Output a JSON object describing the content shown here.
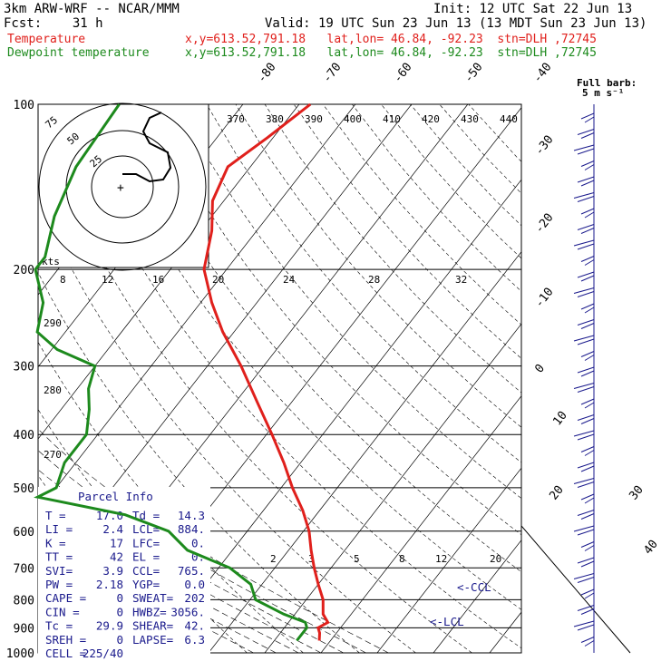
{
  "header": {
    "model": "3km ARW-WRF -- NCAR/MMM",
    "init": "Init: 12 UTC Sat 22 Jun 13",
    "fcst": "Fcst:    31 h",
    "valid": "Valid: 19 UTC Sun 23 Jun 13 (13 MDT Sun 23 Jun 13)",
    "temp_label": "Temperature",
    "temp_loc": "x,y=613.52,791.18   lat,lon= 46.84, -92.23  stn=DLH ,72745",
    "dew_label": "Dewpoint temperature",
    "dew_loc": "x,y=613.52,791.18   lat,lon= 46.84, -92.23  stn=DLH ,72745"
  },
  "colors": {
    "temperature": "#e0201c",
    "dewpoint": "#1d8a1d",
    "parcel_text": "#1a1a8c"
  },
  "chart_data": {
    "type": "line",
    "pressure_levels": [
      100,
      200,
      300,
      400,
      500,
      600,
      700,
      800,
      900,
      1000
    ],
    "pressure_ticks": [
      "100",
      "200",
      "300",
      "400",
      "500",
      "600",
      "700",
      "800",
      "900",
      "1000"
    ],
    "isotherm_labels": [
      "-80",
      "-70",
      "-60",
      "-50",
      "-40",
      "-30",
      "-20",
      "-10",
      "0",
      "10",
      "20",
      "30",
      "40"
    ],
    "theta_labels": [
      "370",
      "380",
      "390",
      "400",
      "410",
      "420",
      "430",
      "440"
    ],
    "mixing_ratio_labels": [
      "2",
      "3",
      "5",
      "8",
      "12",
      "20"
    ],
    "hodo_speed_labels": [
      "8",
      "12",
      "16",
      "20",
      "24",
      "28",
      "32"
    ],
    "theta_side_labels": [
      "290",
      "280",
      "270"
    ],
    "hodograph": {
      "units_label": "kts",
      "ring_labels": [
        "25",
        "50",
        "75"
      ]
    },
    "wind_barb_label": "Full barb:",
    "wind_barb_label2": "5 m s⁻¹",
    "annotations": [
      "<-CCL",
      "<-LCL"
    ],
    "series": [
      {
        "name": "Temperature",
        "color": "#e0201c",
        "points": [
          [
            100,
            -58
          ],
          [
            115,
            -61
          ],
          [
            130,
            -64
          ],
          [
            150,
            -62
          ],
          [
            170,
            -58
          ],
          [
            200,
            -54
          ],
          [
            230,
            -48
          ],
          [
            260,
            -42
          ],
          [
            300,
            -34
          ],
          [
            350,
            -26
          ],
          [
            400,
            -19
          ],
          [
            450,
            -13
          ],
          [
            500,
            -8
          ],
          [
            550,
            -3
          ],
          [
            600,
            1
          ],
          [
            650,
            4
          ],
          [
            700,
            7
          ],
          [
            750,
            10
          ],
          [
            800,
            13
          ],
          [
            850,
            15
          ],
          [
            880,
            17
          ],
          [
            900,
            16
          ],
          [
            920,
            17
          ],
          [
            950,
            18
          ]
        ]
      },
      {
        "name": "Dewpoint temperature",
        "color": "#1d8a1d",
        "points": [
          [
            100,
            -92
          ],
          [
            130,
            -91
          ],
          [
            160,
            -88
          ],
          [
            190,
            -84
          ],
          [
            200,
            -84
          ],
          [
            230,
            -78
          ],
          [
            260,
            -75
          ],
          [
            280,
            -69
          ],
          [
            300,
            -60
          ],
          [
            330,
            -58
          ],
          [
            360,
            -55
          ],
          [
            400,
            -52
          ],
          [
            450,
            -52
          ],
          [
            500,
            -50
          ],
          [
            520,
            -52
          ],
          [
            560,
            -34
          ],
          [
            600,
            -24
          ],
          [
            650,
            -18
          ],
          [
            700,
            -8
          ],
          [
            750,
            -2
          ],
          [
            800,
            1
          ],
          [
            850,
            8
          ],
          [
            880,
            13
          ],
          [
            900,
            14
          ],
          [
            920,
            14
          ],
          [
            950,
            14
          ]
        ]
      }
    ]
  },
  "parcel_info": {
    "title": "Parcel Info",
    "rows": [
      [
        "T  =",
        "17.0",
        "Td =",
        "14.3"
      ],
      [
        "LI =",
        "2.4",
        "LCL=",
        "884."
      ],
      [
        "K  =",
        "17",
        "LFC=",
        "0."
      ],
      [
        "TT =",
        "42",
        "EL =",
        "0."
      ],
      [
        "SVI=",
        "3.9",
        "CCL=",
        "765."
      ],
      [
        "PW =",
        "2.18",
        "YGP=",
        "0.0"
      ],
      [
        "CAPE =",
        "0",
        "SWEAT=",
        "202"
      ],
      [
        "CIN =",
        "0",
        "HWBZ=",
        "3056."
      ],
      [
        "Tc =",
        "29.9",
        "SHEAR=",
        "42."
      ],
      [
        "SREH =",
        "0",
        "LAPSE=",
        "6.3"
      ],
      [
        "CELL =",
        "225/40",
        "",
        ""
      ]
    ]
  }
}
